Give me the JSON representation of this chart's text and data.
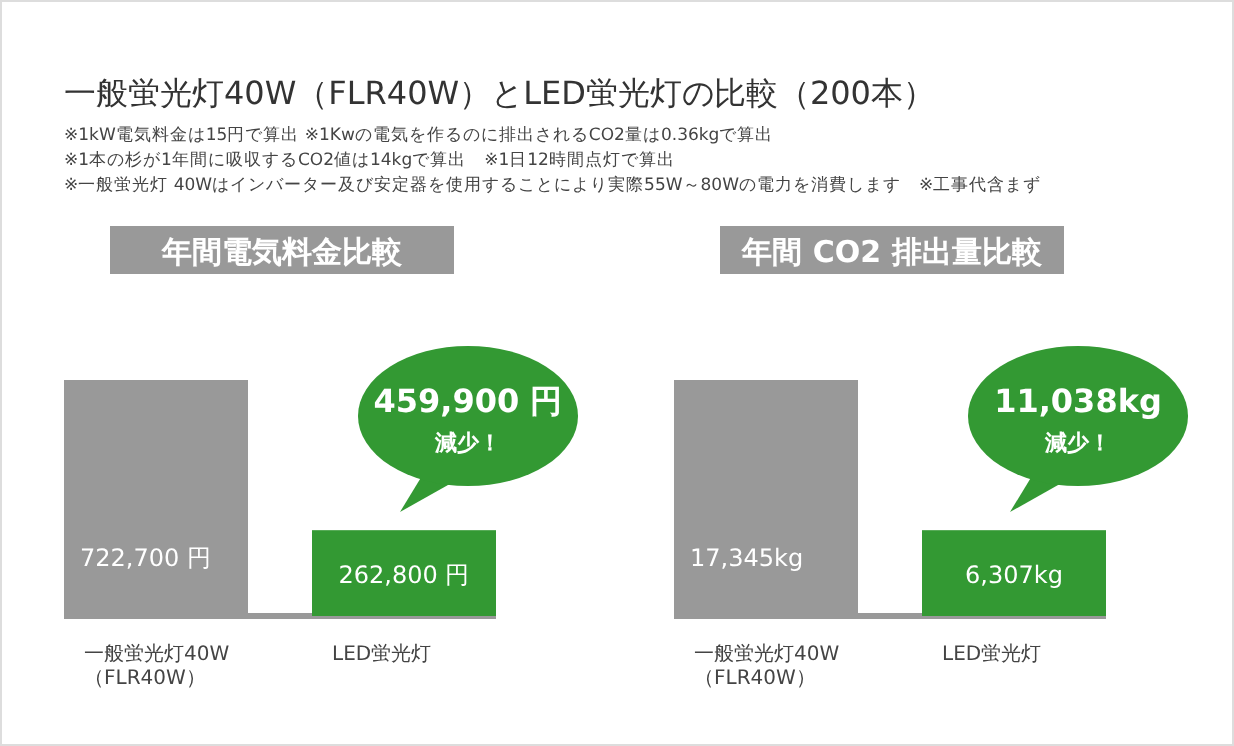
{
  "chart_data": [
    {
      "type": "bar",
      "title": "一般蛍光灯40W（FLR40W）とLED蛍光灯の比較（200本）",
      "subtitle": "年間電気料金比較",
      "categories": [
        "一般蛍光灯40W\n（FLR40W）",
        "LED蛍光灯"
      ],
      "values": [
        722700,
        262800
      ],
      "colors": [
        "#999999",
        "#339933"
      ],
      "value_labels": [
        "722,700 円",
        "262,800 円"
      ],
      "annotations": [
        "※1kW電気料金は15円で算出 ※1Kwの電気を作るのに排出されるCO2量は0.36kgで算出",
        "※1本の杉が1年間に吸収するCO2値は14kgで算出　※1日12時間点灯で算出",
        "※一般蛍光灯 40Wはインバーター及び安定器を使用することにより実際55W～80Wの電力を消費します　※工事代含まず",
        "459,900 円",
        "減少！"
      ]
    },
    {
      "type": "bar",
      "subtitle": "年間 CO2 排出量比較",
      "categories": [
        "一般蛍光灯40W\n（FLR40W）",
        "LED蛍光灯"
      ],
      "values": [
        17345,
        6307
      ],
      "colors": [
        "#999999",
        "#339933"
      ],
      "value_labels": [
        "17,345kg",
        "6,307kg"
      ],
      "annotations": [
        "11,038kg",
        "減少！"
      ]
    }
  ]
}
